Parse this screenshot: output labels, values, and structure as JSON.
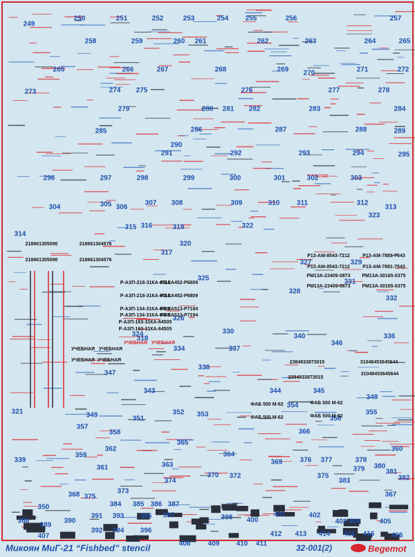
{
  "decal_numbers": [
    "249",
    "250",
    "251",
    "252",
    "253",
    "254",
    "255",
    "256",
    "257",
    "258",
    "259",
    "260",
    "261",
    "262",
    "263",
    "264",
    "265",
    "265",
    "266",
    "267",
    "268",
    "269",
    "270",
    "271",
    "272",
    "273",
    "274",
    "275",
    "276",
    "277",
    "278",
    "279",
    "280",
    "281",
    "282",
    "283",
    "284",
    "285",
    "286",
    "287",
    "288",
    "289",
    "290",
    "291",
    "292",
    "293",
    "294",
    "295",
    "296",
    "297",
    "298",
    "299",
    "300",
    "301",
    "302",
    "303",
    "304",
    "305",
    "306",
    "307",
    "308",
    "309",
    "310",
    "311",
    "312",
    "313",
    "323",
    "314",
    "315",
    "316",
    "319",
    "322",
    "320",
    "317",
    "325",
    "327",
    "329",
    "331",
    "328",
    "332",
    "326",
    "330",
    "324",
    "318",
    "340",
    "336",
    "346",
    "334",
    "337",
    "338",
    "347",
    "343",
    "344",
    "345",
    "348",
    "321",
    "349",
    "351",
    "352",
    "353",
    "354",
    "355",
    "356",
    "357",
    "358",
    "366",
    "365",
    "362",
    "360",
    "359",
    "364",
    "339",
    "376",
    "377",
    "378",
    "369",
    "363",
    "361",
    "380",
    "379",
    "381",
    "370",
    "372",
    "375",
    "382",
    "374",
    "383",
    "373",
    "368",
    "375",
    "367",
    "384",
    "385",
    "386",
    "387",
    "350",
    "391",
    "393",
    "395",
    "397",
    "401",
    "402",
    "398",
    "400",
    "388",
    "390",
    "403",
    "404",
    "405",
    "389",
    "392",
    "394",
    "396",
    "412",
    "413",
    "414",
    "415",
    "416",
    "406",
    "407",
    "408",
    "409",
    "410",
    "411"
  ],
  "decal_texts": [
    "218661305090",
    "218661304576",
    "218661305090",
    "218661304576",
    "Р-АЗП-218-31КА-6112",
    "Р3-КА452-Р6809",
    "Р-АЗП-218-31КА-6112",
    "Р3-КА452-Р6809",
    "Р-АЗП-134-31КА-6409",
    "Р3-КА513-Р7194",
    "Р-АЗП-134-31КА-6409",
    "Р3-КА513-Р7194",
    "Р-АЗП-163-31КА-64505",
    "Р-АЗП-163-31КА-64505",
    "Р13-АМ-8543-7212",
    "Р13-АМ-7881-7543",
    "Р13-АМ-8543-7212",
    "Р13-АМ-7881-7543",
    "РМ13А-23409-0873",
    "РМ13А-30165-0375",
    "РМ13А-23409-0873",
    "РМ13А-30165-0375",
    "УЧЕБНАЯ",
    "УЧЕБНАЯ",
    "УЧЕБНАЯ",
    "УЧЕБНАЯ",
    "УЧЕБНАЯ",
    "УЧЕБНАЯ",
    "2384933873015",
    "31048453645644",
    "2384933873015",
    "31048453645644",
    "ФАБ 500 М-62",
    "ФАБ 500 М-62",
    "ФАБ 500 М-62",
    "ФАБ 500 М-62"
  ],
  "footer": {
    "title": "Микоян МиГ-21 “Fishbed” stencil",
    "code": "32-001(2)",
    "brand": "Begemot"
  }
}
